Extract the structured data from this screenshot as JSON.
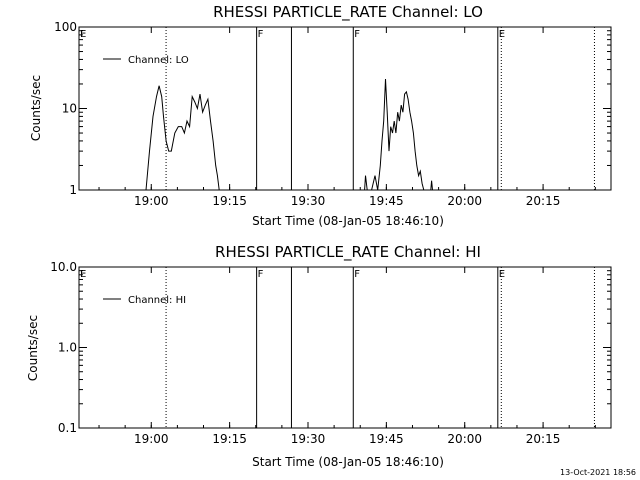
{
  "footer_timestamp": "13-Oct-2021 18:56",
  "chart_data": [
    {
      "type": "line",
      "title": "RHESSI PARTICLE_RATE Channel: LO",
      "xlabel": "Start Time (08-Jan-05 18:46:10)",
      "ylabel": "Counts/sec",
      "yscale": "log",
      "ylim": [
        1,
        100
      ],
      "xlim": [
        "18:46:10",
        "20:28:00"
      ],
      "x_ticks": [
        "19:00",
        "19:15",
        "19:30",
        "19:45",
        "20:00",
        "20:15"
      ],
      "y_ticks": [
        "1",
        "10",
        "100"
      ],
      "legend": {
        "label": "Channel: LO",
        "position": "top-left"
      },
      "flag_markers": [
        {
          "label": "E",
          "time": "18:46:10",
          "style": "dotted"
        },
        {
          "label": "",
          "time": "19:02:50",
          "style": "dotted"
        },
        {
          "label": "F",
          "time": "19:20:10",
          "style": "solid"
        },
        {
          "label": "",
          "time": "19:26:50",
          "style": "solid"
        },
        {
          "label": "F",
          "time": "19:38:40",
          "style": "solid"
        },
        {
          "label": "E",
          "time": "20:06:20",
          "style": "solid"
        },
        {
          "label": "",
          "time": "20:07:00",
          "style": "dotted"
        },
        {
          "label": "",
          "time": "20:24:50",
          "style": "dotted"
        }
      ],
      "series": [
        {
          "name": "Channel: LO",
          "segments": [
            {
              "x": [
                "18:59:00",
                "18:59:40",
                "19:00:20",
                "19:01:00",
                "19:01:30",
                "19:02:00",
                "19:02:20",
                "19:02:50",
                "19:03:20",
                "19:03:50",
                "19:04:30",
                "19:05:10",
                "19:05:50",
                "19:06:20",
                "19:06:50",
                "19:07:20",
                "19:07:50",
                "19:08:20",
                "19:08:50",
                "19:09:20",
                "19:09:50",
                "19:10:20",
                "19:10:50",
                "19:11:20",
                "19:11:50",
                "19:12:20",
                "19:12:40",
                "19:13:00"
              ],
              "y": [
                1,
                3,
                8,
                14,
                19,
                14,
                8,
                4,
                3,
                3,
                5,
                6,
                6,
                5,
                7,
                6,
                14,
                12,
                10,
                15,
                9,
                11,
                13,
                7,
                4,
                2,
                1.5,
                1
              ]
            },
            {
              "x": [
                "19:40:50",
                "19:41:00",
                "19:41:20"
              ],
              "y": [
                1,
                1.5,
                1
              ]
            },
            {
              "x": [
                "19:42:10",
                "19:42:50",
                "19:43:20",
                "19:43:50",
                "19:44:10",
                "19:44:30",
                "19:44:50",
                "19:45:10",
                "19:45:30",
                "19:45:50",
                "19:46:10",
                "19:46:30",
                "19:46:50",
                "19:47:10",
                "19:47:30",
                "19:47:50",
                "19:48:10",
                "19:48:30",
                "19:48:50",
                "19:49:10",
                "19:49:30",
                "19:49:50",
                "19:50:10",
                "19:50:30",
                "19:50:50",
                "19:51:10",
                "19:51:30",
                "19:51:50",
                "19:52:10"
              ],
              "y": [
                1,
                1.5,
                1,
                2,
                4,
                7,
                23,
                9,
                3,
                6,
                5,
                7,
                5,
                9,
                7,
                11,
                9,
                15,
                16,
                13,
                9,
                7,
                5,
                3,
                2,
                1.5,
                1.7,
                1.2,
                1
              ]
            },
            {
              "x": [
                "19:53:30",
                "19:53:40",
                "19:53:50"
              ],
              "y": [
                1,
                1.3,
                1
              ]
            }
          ]
        }
      ]
    },
    {
      "type": "line",
      "title": "RHESSI PARTICLE_RATE Channel: HI",
      "xlabel": "Start Time (08-Jan-05 18:46:10)",
      "ylabel": "Counts/sec",
      "yscale": "log",
      "ylim": [
        0.1,
        10
      ],
      "xlim": [
        "18:46:10",
        "20:28:00"
      ],
      "x_ticks": [
        "19:00",
        "19:15",
        "19:30",
        "19:45",
        "20:00",
        "20:15"
      ],
      "y_ticks": [
        "0.1",
        "1.0",
        "10.0"
      ],
      "legend": {
        "label": "Channel: HI",
        "position": "top-left"
      },
      "flag_markers": [
        {
          "label": "E",
          "time": "18:46:10",
          "style": "dotted"
        },
        {
          "label": "",
          "time": "19:02:50",
          "style": "dotted"
        },
        {
          "label": "F",
          "time": "19:20:10",
          "style": "solid"
        },
        {
          "label": "",
          "time": "19:26:50",
          "style": "solid"
        },
        {
          "label": "F",
          "time": "19:38:40",
          "style": "solid"
        },
        {
          "label": "E",
          "time": "20:06:20",
          "style": "solid"
        },
        {
          "label": "",
          "time": "20:07:00",
          "style": "dotted"
        },
        {
          "label": "",
          "time": "20:24:50",
          "style": "dotted"
        }
      ],
      "series": [
        {
          "name": "Channel: HI",
          "segments": []
        }
      ]
    }
  ]
}
